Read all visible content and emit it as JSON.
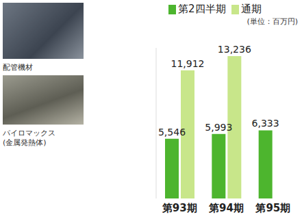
{
  "chart_data": {
    "type": "bar",
    "subtitle": "(単位：百万円)",
    "categories": [
      "第93期",
      "第94期",
      "第95期"
    ],
    "series": [
      {
        "name": "第2四半期",
        "color": "#4db52e",
        "values": [
          5546,
          5993,
          6333
        ],
        "value_labels": [
          "5,546",
          "5,993",
          "6,333"
        ]
      },
      {
        "name": "通期",
        "color": "#c8e68a",
        "values": [
          11912,
          13236,
          null
        ],
        "value_labels": [
          "11,912",
          "13,236",
          null
        ]
      }
    ],
    "ylim": [
      0,
      14000
    ],
    "data_labels": true,
    "tick_labels": "x",
    "grid": false,
    "legend": "top"
  },
  "images": [
    {
      "caption": [
        "配管機材"
      ]
    },
    {
      "caption": [
        "パイロマックス",
        "(金属発熱体)"
      ]
    }
  ]
}
